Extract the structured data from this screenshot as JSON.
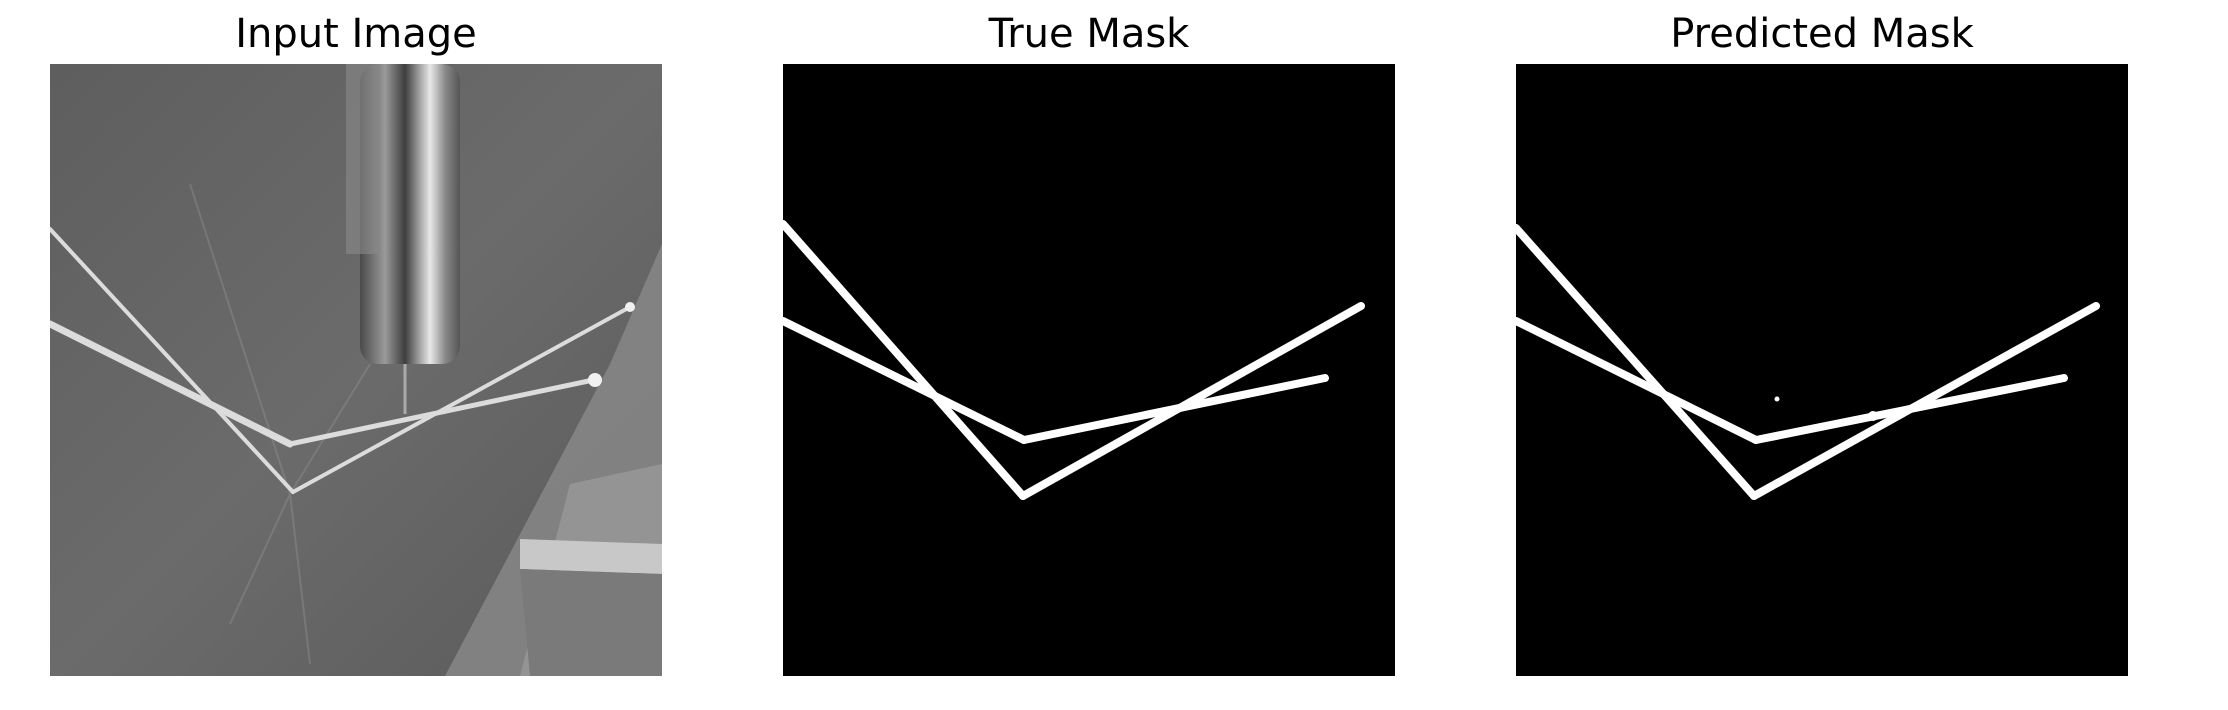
{
  "figure": {
    "panels": [
      {
        "title": "Input Image"
      },
      {
        "title": "True Mask"
      },
      {
        "title": "Predicted Mask"
      }
    ]
  },
  "colors": {
    "background": "#ffffff",
    "mask_background": "#000000",
    "mask_foreground": "#ffffff",
    "input_gray": "#6a6a6a"
  }
}
